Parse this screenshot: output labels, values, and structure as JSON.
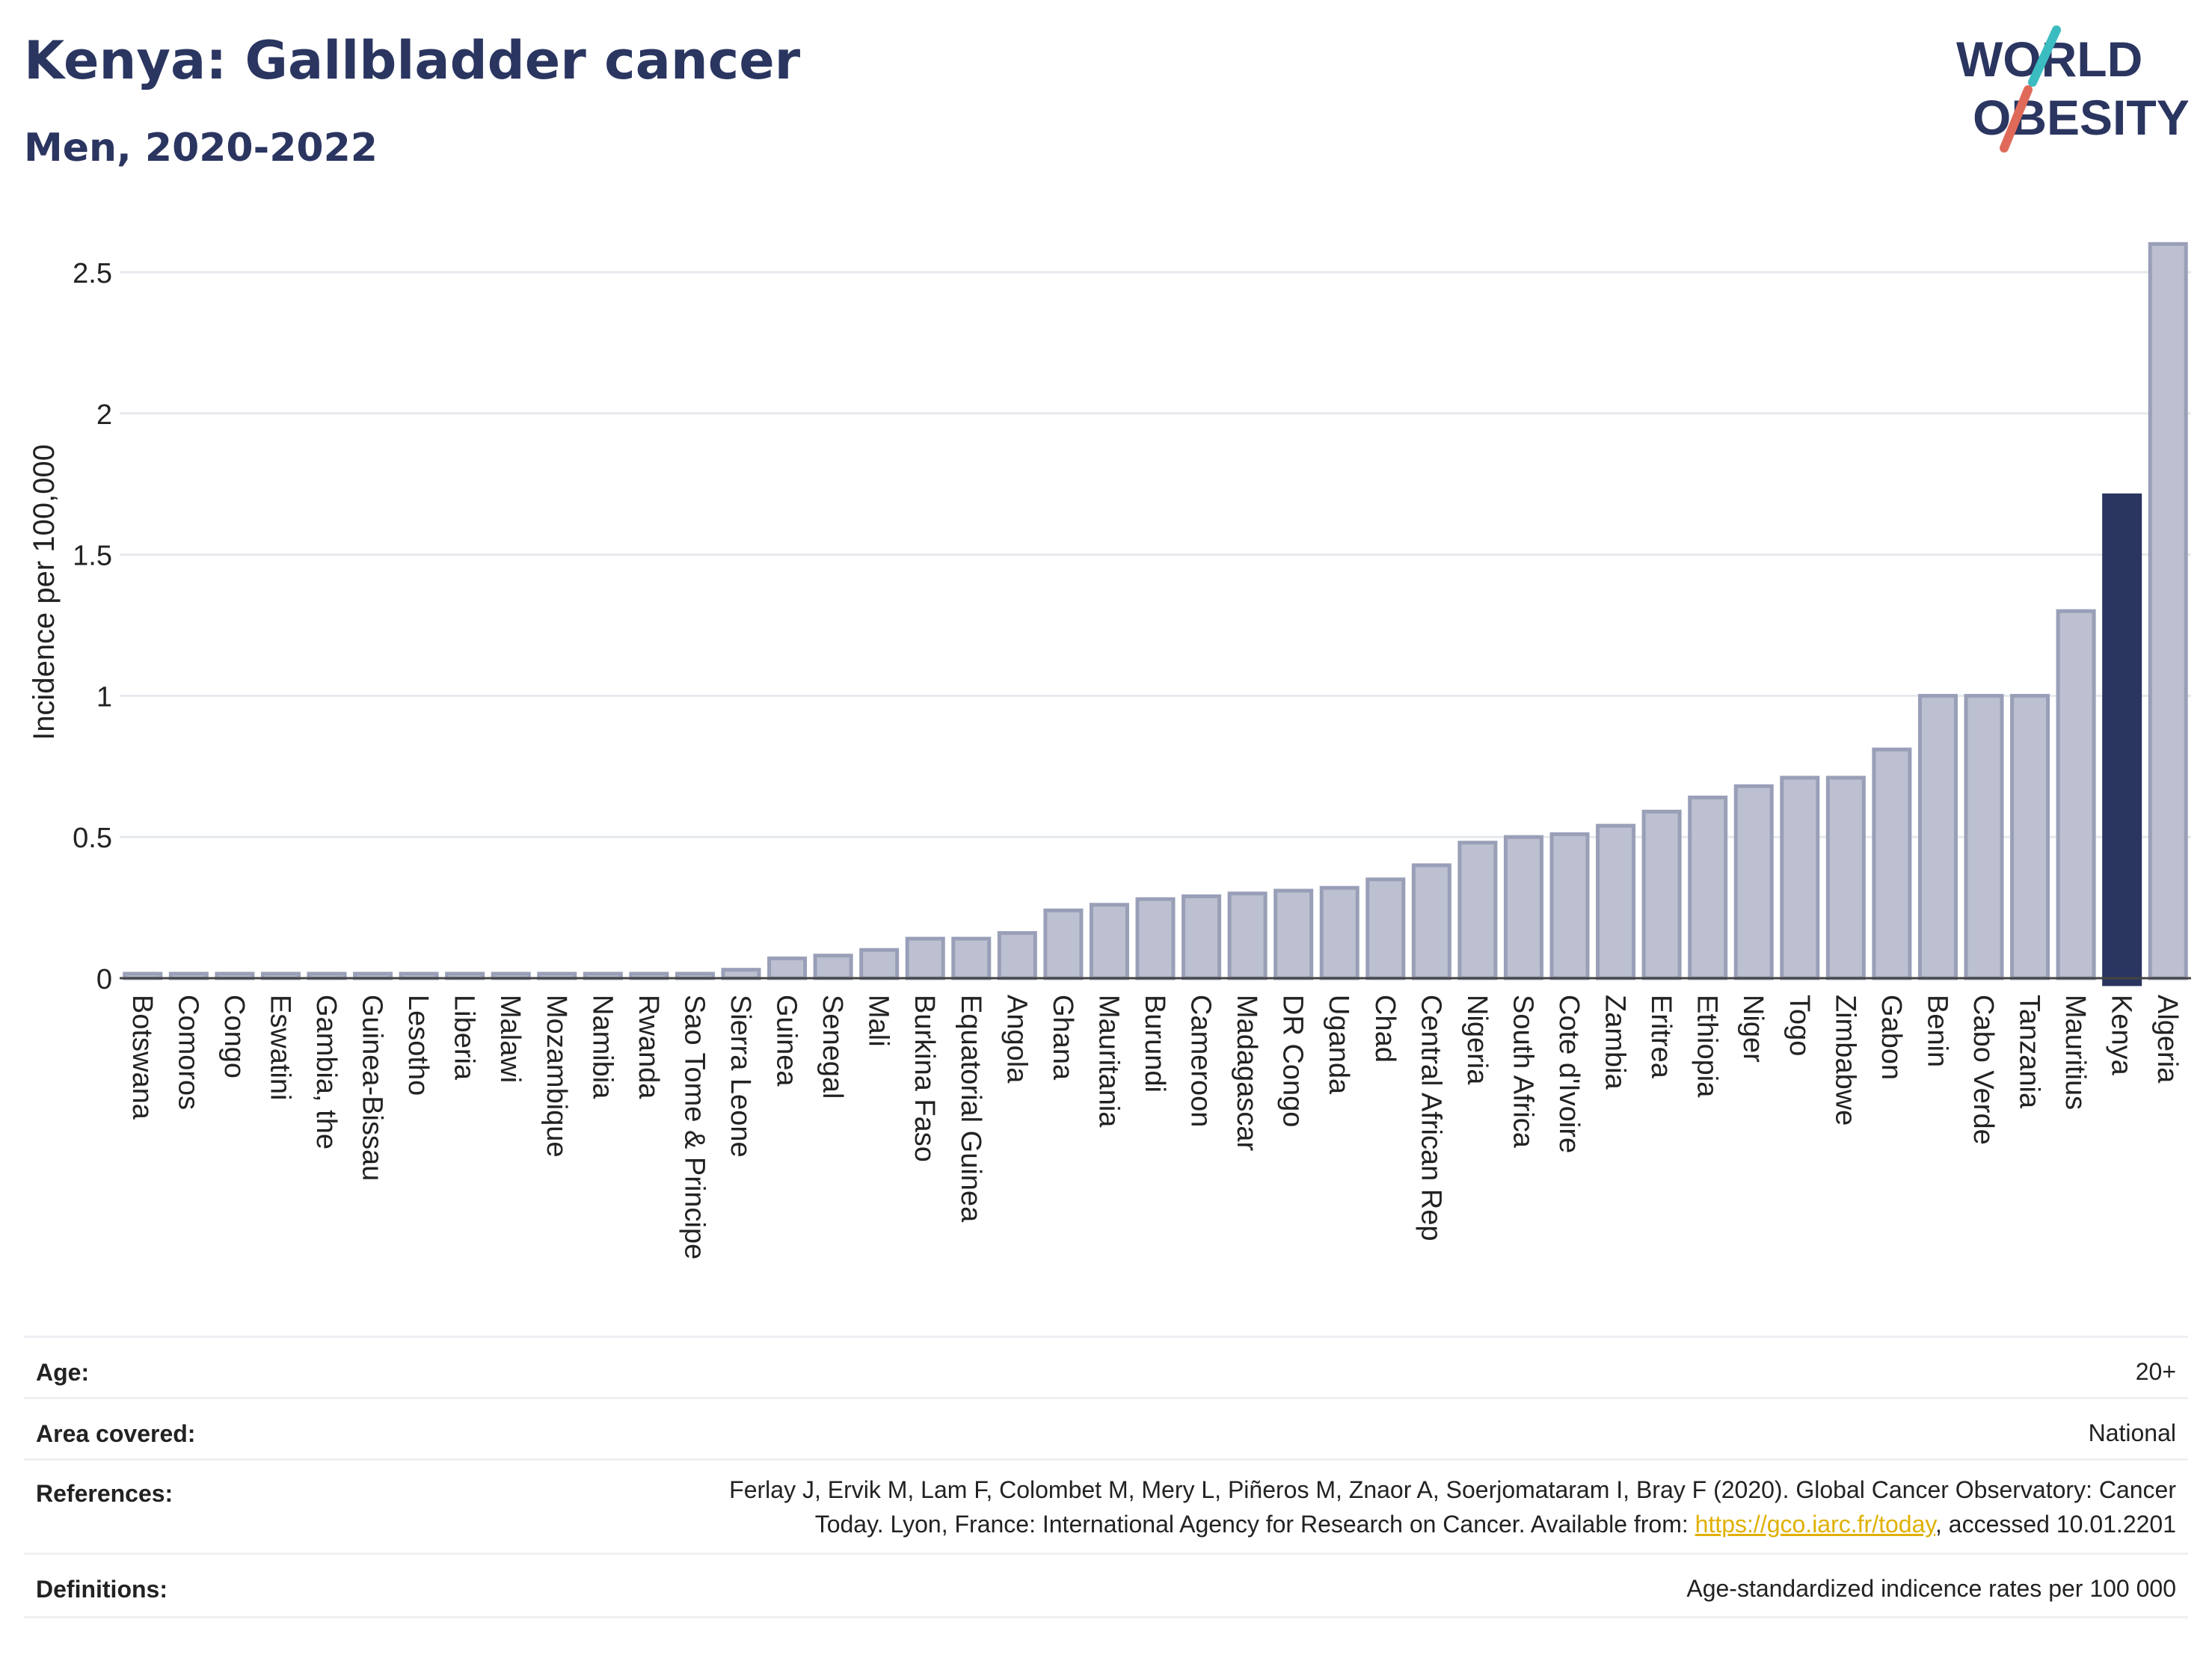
{
  "header": {
    "title": "Kenya: Gallbladder cancer",
    "subtitle": "Men, 2020-2022",
    "logo_line1": "WORLD",
    "logo_line2": "OBESITY"
  },
  "colors": {
    "highlight": "#2a3560",
    "bar_fill": "#bcc0d0",
    "bar_stroke": "#9a9fb8",
    "grid": "#e6e9ee",
    "logo_slash_teal": "#3bbcc0",
    "logo_slash_red": "#e06a5a"
  },
  "chart_data": {
    "type": "bar",
    "ylabel": "Incidence per 100,000",
    "ylim": [
      0,
      2.6
    ],
    "yticks": [
      0,
      0.5,
      1,
      1.5,
      2,
      2.5
    ],
    "ytick_labels": [
      "0",
      "0.5",
      "1",
      "1.5",
      "2",
      "2.5"
    ],
    "highlight": "Kenya",
    "categories": [
      "Botswana",
      "Comoros",
      "Congo",
      "Eswatini",
      "Gambia, the",
      "Guinea-Bissau",
      "Lesotho",
      "Liberia",
      "Malawi",
      "Mozambique",
      "Namibia",
      "Rwanda",
      "Sao Tome & Principe",
      "Sierra Leone",
      "Guinea",
      "Senegal",
      "Mali",
      "Burkina Faso",
      "Equatorial Guinea",
      "Angola",
      "Ghana",
      "Mauritania",
      "Burundi",
      "Cameroon",
      "Madagascar",
      "DR Congo",
      "Uganda",
      "Chad",
      "Central African Rep",
      "Nigeria",
      "South Africa",
      "Cote d'Ivoire",
      "Zambia",
      "Eritrea",
      "Ethiopia",
      "Niger",
      "Togo",
      "Zimbabwe",
      "Gabon",
      "Benin",
      "Cabo Verde",
      "Tanzania",
      "Mauritius",
      "Kenya",
      "Algeria"
    ],
    "values": [
      0,
      0,
      0,
      0,
      0,
      0,
      0,
      0,
      0,
      0,
      0,
      0,
      0,
      0.03,
      0.07,
      0.08,
      0.1,
      0.14,
      0.14,
      0.16,
      0.24,
      0.26,
      0.28,
      0.29,
      0.3,
      0.31,
      0.32,
      0.35,
      0.4,
      0.48,
      0.5,
      0.51,
      0.54,
      0.59,
      0.64,
      0.68,
      0.71,
      0.71,
      0.81,
      1.0,
      1.0,
      1.0,
      1.3,
      1.71,
      2.6
    ]
  },
  "info": {
    "age_label": "Age:",
    "age_value": "20+",
    "area_label": "Area covered:",
    "area_value": "National",
    "references_label": "References:",
    "references_line1": "Ferlay J, Ervik M, Lam F, Colombet M, Mery L, Piñeros M, Znaor A, Soerjomataram I, Bray F (2020). Global Cancer Observatory: Cancer",
    "references_line2_pre": "Today. Lyon, France: International Agency for Research on Cancer. Available from: ",
    "references_link": "https://gco.iarc.fr/today",
    "references_line2_post": ", accessed 10.01.2201",
    "definitions_label": "Definitions:",
    "definitions_value": "Age-standardized indicence rates per 100 000"
  }
}
